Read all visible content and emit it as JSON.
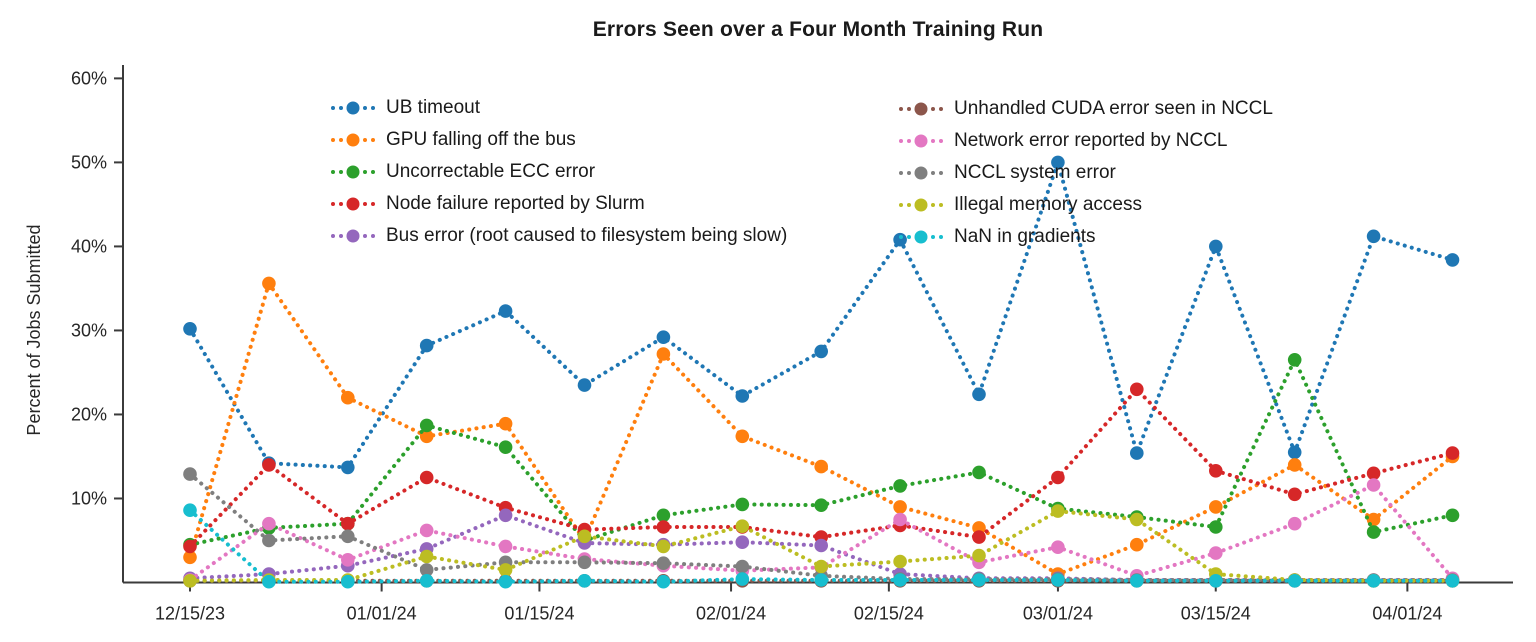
{
  "title": "Errors Seen over a Four Month Training Run",
  "y_axis": {
    "label": "Percent of Jobs Submitted",
    "tick_labels": [
      "60%",
      "50%",
      "40%",
      "30%",
      "20%",
      "10%"
    ],
    "tick_values": [
      60,
      50,
      40,
      30,
      20,
      10
    ]
  },
  "x_axis": {
    "tick_labels": [
      "12/15/23",
      "01/01/24",
      "01/15/24",
      "02/01/24",
      "02/15/24",
      "03/01/24",
      "03/15/24",
      "04/01/24"
    ],
    "tick_day_offsets": [
      0,
      17,
      31,
      48,
      62,
      77,
      91,
      108
    ]
  },
  "legend": {
    "left_column": [
      "UB timeout",
      "GPU falling off the bus",
      "Uncorrectable ECC error",
      "Node failure reported by Slurm",
      "Bus error (root caused to filesystem being slow)"
    ],
    "right_column": [
      "Unhandled CUDA error seen in NCCL",
      "Network error reported by NCCL",
      "NCCL system error",
      "Illegal memory access",
      "NaN in gradients"
    ]
  },
  "chart_data": {
    "type": "line",
    "style": "dotted lines with circular markers",
    "grid": false,
    "legend_position": "upper area inside plot, two columns",
    "xlabel": "",
    "ylabel": "Percent of Jobs Submitted",
    "ylim": [
      0,
      60
    ],
    "x_dates": [
      "12/15/23",
      "12/22/23",
      "12/29/23",
      "01/05/24",
      "01/12/24",
      "01/19/24",
      "01/26/24",
      "02/02/24",
      "02/09/24",
      "02/16/24",
      "02/23/24",
      "03/01/24",
      "03/08/24",
      "03/15/24",
      "03/22/24",
      "03/29/24",
      "04/05/24"
    ],
    "x_day_offsets": [
      0,
      7,
      14,
      21,
      28,
      35,
      42,
      49,
      56,
      63,
      70,
      77,
      84,
      91,
      98,
      105,
      112
    ],
    "series": [
      {
        "name": "UB timeout",
        "color": "#1f77b4",
        "values": [
          30.2,
          14.2,
          13.7,
          28.2,
          32.3,
          23.5,
          29.2,
          22.2,
          27.5,
          40.8,
          22.4,
          50.0,
          15.4,
          40.0,
          15.5,
          41.2,
          38.4
        ]
      },
      {
        "name": "GPU falling off the bus",
        "color": "#ff7f0e",
        "values": [
          3.0,
          35.6,
          22.0,
          17.4,
          18.9,
          5.0,
          27.2,
          17.4,
          13.8,
          9.0,
          6.5,
          1.0,
          4.5,
          9.0,
          14.0,
          7.5,
          15.0
        ]
      },
      {
        "name": "Uncorrectable ECC error",
        "color": "#2ca02c",
        "values": [
          4.5,
          6.5,
          7.0,
          18.7,
          16.1,
          5.0,
          8.0,
          9.3,
          9.2,
          11.5,
          13.1,
          8.8,
          7.8,
          6.6,
          26.5,
          6.0,
          8.0
        ]
      },
      {
        "name": "Node failure reported by Slurm",
        "color": "#d62728",
        "values": [
          4.3,
          14.0,
          7.0,
          12.5,
          8.9,
          6.3,
          6.6,
          6.6,
          5.4,
          6.8,
          5.4,
          12.5,
          23.0,
          13.3,
          10.5,
          13.0,
          15.4
        ]
      },
      {
        "name": "Bus error (root caused to filesystem being slow)",
        "color": "#9467bd",
        "values": [
          0.5,
          1.0,
          2.0,
          4.0,
          8.0,
          4.7,
          4.5,
          4.8,
          4.4,
          1.0,
          0.5,
          0.5,
          0.3,
          0.3,
          0.3,
          0.3,
          0.3
        ]
      },
      {
        "name": "Unhandled CUDA error seen in NCCL",
        "color": "#8c564b",
        "values": [
          0.2,
          0.2,
          0.2,
          0.2,
          0.2,
          0.2,
          0.2,
          0.2,
          0.2,
          0.2,
          0.2,
          0.2,
          0.2,
          0.2,
          0.2,
          0.2,
          0.2
        ]
      },
      {
        "name": "Network error reported by NCCL",
        "color": "#e377c2",
        "values": [
          0.3,
          7.0,
          2.7,
          6.2,
          4.3,
          2.8,
          2.0,
          1.4,
          1.8,
          7.5,
          2.4,
          4.2,
          0.8,
          3.5,
          7.0,
          11.6,
          0.5
        ]
      },
      {
        "name": "NCCL system error",
        "color": "#7f7f7f",
        "values": [
          12.9,
          5.0,
          5.5,
          1.5,
          2.4,
          2.4,
          2.3,
          1.9,
          0.8,
          0.4,
          0.4,
          0.4,
          0.3,
          0.3,
          0.3,
          0.3,
          0.3
        ]
      },
      {
        "name": "Illegal memory access",
        "color": "#bcbd22",
        "values": [
          0.2,
          0.3,
          0.3,
          3.1,
          1.5,
          5.5,
          4.3,
          6.7,
          1.9,
          2.5,
          3.2,
          8.5,
          7.5,
          1.0,
          0.3,
          0.2,
          0.2
        ]
      },
      {
        "name": "NaN in gradients",
        "color": "#17becf",
        "values": [
          8.6,
          0.1,
          0.1,
          0.2,
          0.1,
          0.2,
          0.1,
          0.4,
          0.3,
          0.3,
          0.3,
          0.3,
          0.2,
          0.2,
          0.2,
          0.2,
          0.2
        ]
      }
    ]
  }
}
